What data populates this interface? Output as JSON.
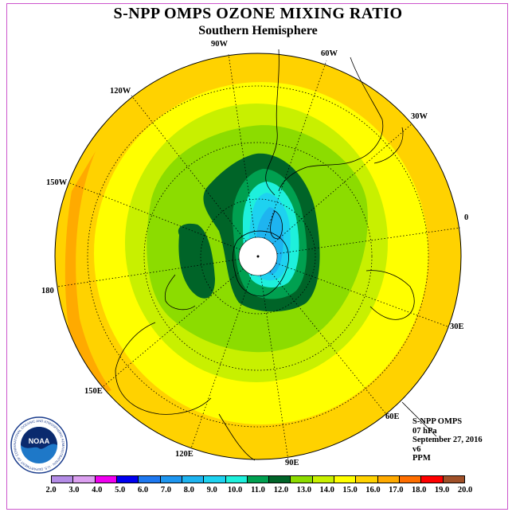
{
  "title": "S-NPP OMPS OZONE MIXING RATIO",
  "subtitle": "Southern Hemisphere",
  "longitude_labels": [
    "90W",
    "60W",
    "30W",
    "0",
    "30E",
    "60E",
    "90E",
    "120E",
    "150E",
    "180",
    "150W",
    "120W"
  ],
  "info": {
    "instrument": "S-NPP OMPS",
    "pressure_level": "07 hPa",
    "date": "September 27, 2016",
    "version": "v6",
    "units": "PPM"
  },
  "logo": {
    "name": "NOAA",
    "ring_text": "NATIONAL OCEANIC AND ATMOSPHERIC ADMINISTRATION · U.S. DEPARTMENT OF COMMERCE"
  },
  "colorbar": {
    "ticks": [
      "2.0",
      "3.0",
      "4.0",
      "5.0",
      "6.0",
      "7.0",
      "8.0",
      "9.0",
      "10.0",
      "11.0",
      "12.0",
      "13.0",
      "14.0",
      "15.0",
      "16.0",
      "17.0",
      "18.0",
      "19.0",
      "20.0"
    ],
    "colors": [
      "#b48ce6",
      "#dca0f0",
      "#f000f0",
      "#0000f0",
      "#1e78f0",
      "#1e96f0",
      "#1eb4f0",
      "#1ed2f0",
      "#1ef0dc",
      "#00a050",
      "#006428",
      "#8cdc00",
      "#c8f000",
      "#ffff00",
      "#ffd200",
      "#ffaa00",
      "#ff6e00",
      "#ff0000",
      "#a05028"
    ]
  },
  "colors": {
    "frame": "#cc55cc"
  }
}
